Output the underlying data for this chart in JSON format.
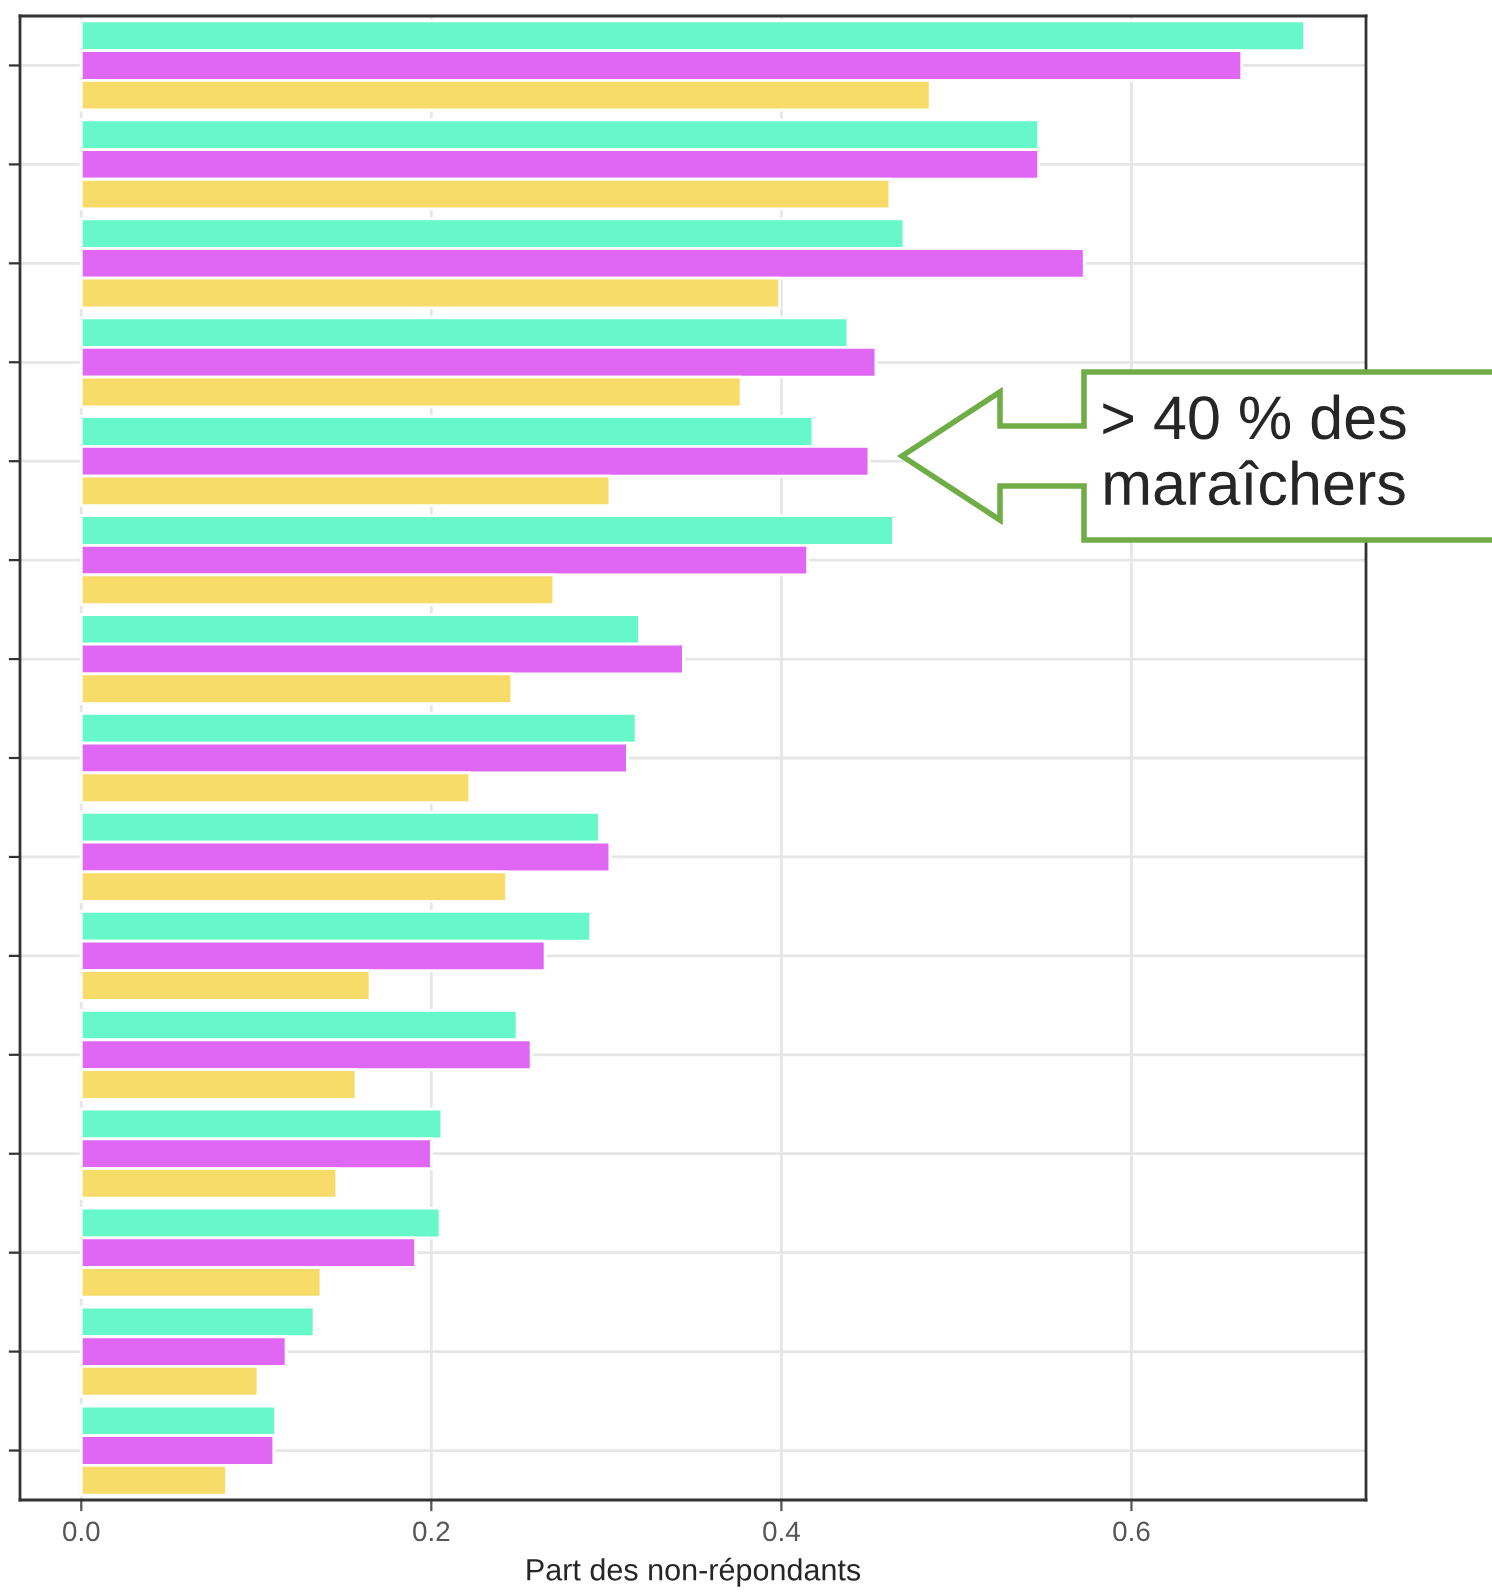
{
  "chart_data": {
    "type": "bar",
    "orientation": "horizontal",
    "xlabel": "Part des non-répondants",
    "categories": [
      null,
      null,
      null,
      null,
      null,
      null,
      null,
      null,
      null,
      null,
      null,
      null,
      null,
      null,
      null
    ],
    "series": [
      {
        "color": "#66f8c8",
        "values": [
          0.699,
          0.547,
          0.47,
          0.438,
          0.418,
          0.464,
          0.319,
          0.317,
          0.296,
          0.291,
          0.249,
          0.206,
          0.205,
          0.133,
          0.111
        ]
      },
      {
        "color": "#e066f4",
        "values": [
          0.663,
          0.547,
          0.573,
          0.454,
          0.45,
          0.415,
          0.344,
          0.312,
          0.302,
          0.265,
          0.257,
          0.2,
          0.191,
          0.117,
          0.11
        ]
      },
      {
        "color": "#f7dc6a",
        "values": [
          0.485,
          0.462,
          0.399,
          0.377,
          0.302,
          0.27,
          0.246,
          0.222,
          0.243,
          0.165,
          0.157,
          0.146,
          0.137,
          0.101,
          0.083
        ]
      }
    ],
    "xlim": [
      -0.035,
      0.734
    ],
    "xticks": [
      {
        "value": 0,
        "label": "0.0"
      },
      {
        "value": 0.2,
        "label": "0.2"
      },
      {
        "value": 0.4,
        "label": "0.4"
      },
      {
        "value": 0.6,
        "label": "0.6"
      }
    ],
    "grid": true,
    "annotations": [
      "> 40 % des maraîchers"
    ]
  }
}
